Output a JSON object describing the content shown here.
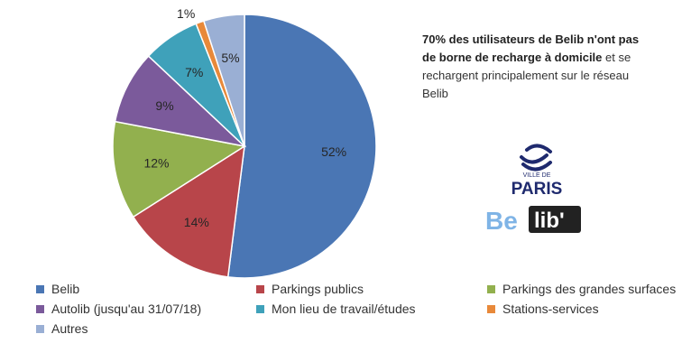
{
  "chart_data": {
    "type": "pie",
    "title": "",
    "categories": [
      "Belib",
      "Parkings publics",
      "Parkings des grandes surfaces",
      "Autolib (jusqu'au 31/07/18)",
      "Mon lieu de travail/études",
      "Stations-services",
      "Autres"
    ],
    "values": [
      52,
      14,
      12,
      9,
      7,
      1,
      5
    ],
    "labels": [
      "52%",
      "14%",
      "12%",
      "9%",
      "7%",
      "1%",
      "5%"
    ],
    "colors": [
      "#4a76b4",
      "#b8454a",
      "#92b04e",
      "#7b5a9b",
      "#3fa1ba",
      "#e8893a",
      "#9aafd4"
    ],
    "start_angle_deg": 0,
    "direction": "clockwise",
    "legend_position": "bottom"
  },
  "annotation": {
    "bold_text": "70% des utilisateurs de Belib n'ont pas de borne de recharge à domicile",
    "regular_text": " et se rechargent principalement sur le réseau Belib"
  },
  "logos": {
    "paris_small": "VILLE DE",
    "paris_big": "PARIS",
    "belib_left": "Be",
    "belib_right": "lib'",
    "icons": [
      "paris-ship-logo-icon",
      "belib-logo-icon"
    ]
  }
}
